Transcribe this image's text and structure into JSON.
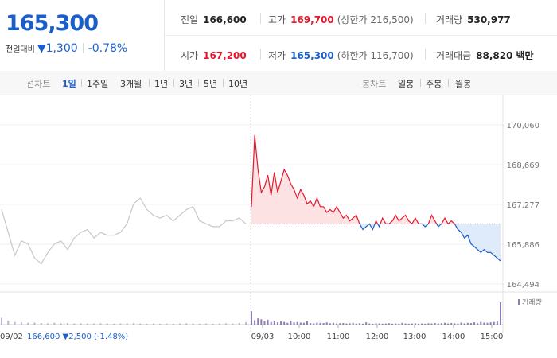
{
  "quote": {
    "price": "165,300",
    "change_label": "전일대비",
    "change_value": "▼1,300",
    "change_pct": "-0.78%"
  },
  "stats": {
    "prev_close": {
      "label": "전일",
      "value": "166,600"
    },
    "high": {
      "label": "고가",
      "value": "169,700",
      "sub": "(상한가 216,500)"
    },
    "volume": {
      "label": "거래량",
      "value": "530,977"
    },
    "open": {
      "label": "시가",
      "value": "167,200"
    },
    "low": {
      "label": "저가",
      "value": "165,300",
      "sub": "(하한가 116,700)"
    },
    "amount": {
      "label": "거래대금",
      "value": "88,820",
      "unit": "백만"
    }
  },
  "tabs": {
    "line_label": "선차트",
    "line_periods": [
      "1일",
      "1주일",
      "3개월",
      "1년",
      "3년",
      "5년",
      "10년"
    ],
    "active_period": "1일",
    "candle_label": "봉차트",
    "candle_periods": [
      "일봉",
      "주봉",
      "월봉"
    ]
  },
  "colors": {
    "up": "#e8162b",
    "down": "#1a5fc9",
    "prev_day_line": "#c8c8c8",
    "volume": "#8f7bb8"
  },
  "chart_data": {
    "type": "line",
    "title": "",
    "xlabel": "",
    "ylabel": "",
    "ylim": [
      164494,
      170060
    ],
    "yticks": [
      "170,060",
      "168,669",
      "167,277",
      "165,886",
      "164,494"
    ],
    "ytick_values": [
      170060,
      168669,
      167277,
      165886,
      164494
    ],
    "reference_price": 166600,
    "x_ticks": [
      "09/03",
      "10:00",
      "11:00",
      "12:00",
      "13:00",
      "14:00",
      "15:00"
    ],
    "volume_label": "거래량",
    "previous_day": {
      "date": "09/02",
      "close": "166,600",
      "change": "▼2,500",
      "change_pct": "(-1.48%)",
      "values": [
        167100,
        166300,
        165500,
        166000,
        165900,
        165400,
        165200,
        165600,
        165900,
        166000,
        165700,
        166100,
        166300,
        166400,
        166100,
        166300,
        166200,
        166200,
        166300,
        166600,
        167300,
        167500,
        167100,
        166900,
        166800,
        166900,
        166700,
        166900,
        167100,
        167200,
        166700,
        166600,
        166500,
        166500,
        166700,
        166700,
        166800,
        166600
      ]
    },
    "series": [
      {
        "name": "",
        "x": [
          "09:00",
          "09:05",
          "09:10",
          "09:15",
          "09:20",
          "09:25",
          "09:30",
          "09:35",
          "09:40",
          "09:45",
          "09:50",
          "09:55",
          "10:00",
          "10:05",
          "10:10",
          "10:15",
          "10:20",
          "10:25",
          "10:30",
          "10:35",
          "10:40",
          "10:45",
          "10:50",
          "10:55",
          "11:00",
          "11:05",
          "11:10",
          "11:15",
          "11:20",
          "11:25",
          "11:30",
          "11:35",
          "11:40",
          "11:45",
          "11:50",
          "11:55",
          "12:00",
          "12:05",
          "12:10",
          "12:15",
          "12:20",
          "12:25",
          "12:30",
          "12:35",
          "12:40",
          "12:45",
          "12:50",
          "12:55",
          "13:00",
          "13:05",
          "13:10",
          "13:15",
          "13:20",
          "13:25",
          "13:30",
          "13:35",
          "13:40",
          "13:45",
          "13:50",
          "13:55",
          "14:00",
          "14:05",
          "14:10",
          "14:15",
          "14:20",
          "14:25",
          "14:30",
          "14:35",
          "14:40",
          "14:45",
          "14:50",
          "14:55",
          "15:00",
          "15:05",
          "15:10",
          "15:15",
          "15:20"
        ],
        "values": [
          167200,
          169700,
          168500,
          167700,
          167900,
          168300,
          167600,
          168400,
          167700,
          168100,
          168500,
          168300,
          168000,
          167800,
          167500,
          167800,
          167600,
          167300,
          167400,
          167200,
          167500,
          167200,
          167200,
          167000,
          167100,
          167000,
          167200,
          167000,
          166800,
          166900,
          166700,
          166800,
          166900,
          166600,
          166400,
          166500,
          166600,
          166400,
          166700,
          166500,
          166800,
          166600,
          166600,
          166700,
          166900,
          166700,
          166800,
          166900,
          166700,
          166600,
          166800,
          166600,
          166600,
          166500,
          166600,
          166900,
          166700,
          166500,
          166600,
          166800,
          166600,
          166700,
          166600,
          166400,
          166300,
          166100,
          166200,
          165900,
          165800,
          165700,
          165600,
          165700,
          165600,
          165600,
          165500,
          165400,
          165300
        ]
      }
    ],
    "volume": [
      0.6,
      0.2,
      0.28,
      0.24,
      0.16,
      0.22,
      0.12,
      0.18,
      0.1,
      0.14,
      0.12,
      0.08,
      0.16,
      0.1,
      0.12,
      0.09,
      0.08,
      0.14,
      0.07,
      0.06,
      0.09,
      0.08,
      0.07,
      0.1,
      0.06,
      0.08,
      0.05,
      0.06,
      0.07,
      0.05,
      0.06,
      0.08,
      0.05,
      0.06,
      0.04,
      0.1,
      0.05,
      0.04,
      0.06,
      0.05,
      0.04,
      0.05,
      0.06,
      0.04,
      0.05,
      0.04,
      0.08,
      0.05,
      0.04,
      0.05,
      0.06,
      0.04,
      0.05,
      0.04,
      0.06,
      0.05,
      0.07,
      0.05,
      0.06,
      0.08,
      0.05,
      0.07,
      0.06,
      0.05,
      0.09,
      0.06,
      0.08,
      0.07,
      0.1,
      0.06,
      0.12,
      0.09,
      0.08,
      0.1,
      0.12,
      0.14,
      1.0
    ],
    "previous_day_volume": [
      0.3,
      0.18,
      0.12,
      0.1,
      0.08,
      0.09,
      0.07,
      0.06,
      0.08,
      0.06,
      0.07,
      0.05,
      0.06,
      0.05,
      0.05,
      0.06,
      0.05,
      0.04,
      0.05,
      0.06,
      0.07,
      0.05,
      0.04,
      0.05,
      0.04,
      0.05,
      0.04,
      0.05,
      0.06,
      0.05,
      0.04,
      0.05,
      0.04,
      0.05,
      0.06,
      0.05,
      0.07,
      0.1
    ]
  }
}
